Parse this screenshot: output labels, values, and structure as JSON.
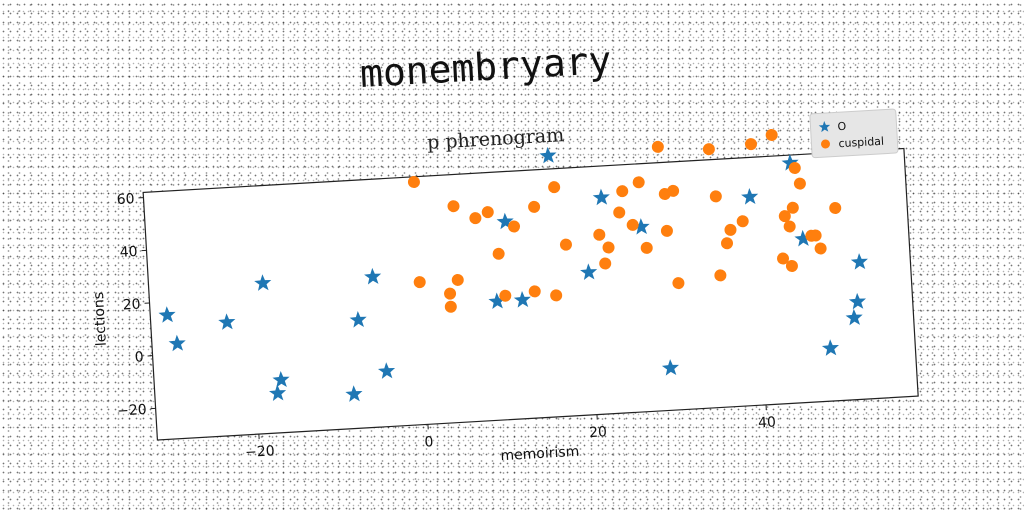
{
  "page_title": "monembryary",
  "chart_data": {
    "type": "scatter",
    "title": "p phrenogram",
    "xlabel": "memoirism",
    "ylabel": "lections",
    "xlim": [
      -32,
      58
    ],
    "ylim": [
      -32,
      62
    ],
    "xticks": [
      -20,
      0,
      20,
      40
    ],
    "yticks": [
      -20,
      0,
      20,
      40,
      60
    ],
    "legend_position": "top-right",
    "series": [
      {
        "name": "O",
        "marker": "star",
        "color": "#1f77b4",
        "points": [
          [
            -30,
            15
          ],
          [
            -29,
            4
          ],
          [
            -23,
            11
          ],
          [
            -18.5,
            25
          ],
          [
            -17.5,
            -17
          ],
          [
            -17,
            -12
          ],
          [
            -8.5,
            -19
          ],
          [
            -7.5,
            9
          ],
          [
            -5.5,
            25
          ],
          [
            -4.5,
            -11
          ],
          [
            9,
            13
          ],
          [
            10.5,
            43
          ],
          [
            12,
            13
          ],
          [
            16,
            67
          ],
          [
            20,
            22
          ],
          [
            22,
            50
          ],
          [
            26.5,
            38
          ],
          [
            29,
            -16
          ],
          [
            39.5,
            47
          ],
          [
            44.5,
            59
          ],
          [
            45.5,
            30
          ],
          [
            48,
            -12
          ],
          [
            51,
            -1
          ],
          [
            51.5,
            5
          ],
          [
            52,
            20
          ]
        ]
      },
      {
        "name": "cuspidal",
        "marker": "circle",
        "color": "#ff7f0e",
        "points": [
          [
            0,
            60
          ],
          [
            0,
            22
          ],
          [
            3.5,
            17
          ],
          [
            3.5,
            12
          ],
          [
            4.5,
            50
          ],
          [
            4.5,
            22
          ],
          [
            7,
            45
          ],
          [
            8.5,
            47
          ],
          [
            9.5,
            31
          ],
          [
            10,
            15
          ],
          [
            11.5,
            41
          ],
          [
            13.5,
            16
          ],
          [
            14,
            48
          ],
          [
            16,
            14
          ],
          [
            16.5,
            55
          ],
          [
            17.5,
            33
          ],
          [
            21.5,
            36
          ],
          [
            22,
            25
          ],
          [
            22.5,
            31
          ],
          [
            24,
            44
          ],
          [
            24.5,
            52
          ],
          [
            25.5,
            39
          ],
          [
            26.5,
            55
          ],
          [
            27,
            30
          ],
          [
            29,
            68
          ],
          [
            29.5,
            50
          ],
          [
            29.5,
            36
          ],
          [
            30.5,
            51
          ],
          [
            30.5,
            16
          ],
          [
            35,
            66
          ],
          [
            35.5,
            48
          ],
          [
            35.5,
            18
          ],
          [
            36.5,
            30
          ],
          [
            37,
            35
          ],
          [
            38.5,
            38
          ],
          [
            40,
            67
          ],
          [
            42.5,
            70
          ],
          [
            43,
            23
          ],
          [
            43.5,
            39
          ],
          [
            44,
            35
          ],
          [
            44,
            20
          ],
          [
            44.5,
            42
          ],
          [
            45,
            57
          ],
          [
            45.5,
            51
          ],
          [
            46.5,
            31
          ],
          [
            47,
            31
          ],
          [
            47.5,
            26
          ],
          [
            49.5,
            41
          ]
        ]
      }
    ]
  }
}
